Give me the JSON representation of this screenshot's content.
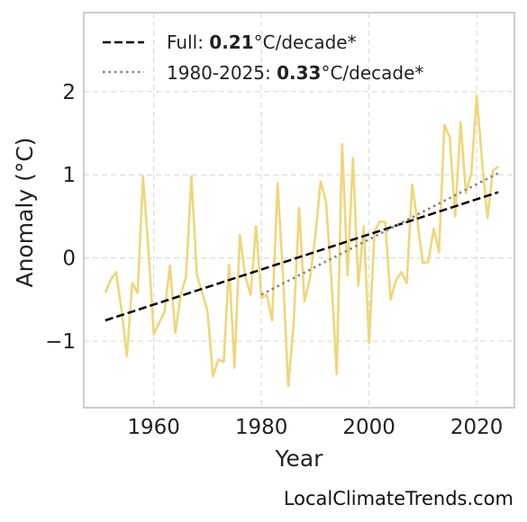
{
  "chart_data": {
    "type": "line",
    "xlabel": "Year",
    "ylabel": "Anomaly (°C)",
    "xlim": [
      1947,
      2027
    ],
    "ylim": [
      -1.8,
      2.95
    ],
    "x_ticks": [
      1960,
      1980,
      2000,
      2020
    ],
    "x_tick_labels": [
      "1960",
      "1980",
      "2000",
      "2020"
    ],
    "y_ticks": [
      -1,
      0,
      1,
      2
    ],
    "y_tick_labels": [
      "−1",
      "0",
      "1",
      "2"
    ],
    "grid": true,
    "legend_position": "top-left",
    "series": [
      {
        "color": "#f0d67a",
        "style": "solid",
        "x": [
          1951,
          1952,
          1953,
          1954,
          1955,
          1956,
          1957,
          1958,
          1959,
          1960,
          1961,
          1962,
          1963,
          1964,
          1965,
          1966,
          1967,
          1968,
          1969,
          1970,
          1971,
          1972,
          1973,
          1974,
          1975,
          1976,
          1977,
          1978,
          1979,
          1980,
          1981,
          1982,
          1983,
          1984,
          1985,
          1986,
          1987,
          1988,
          1989,
          1990,
          1991,
          1992,
          1993,
          1994,
          1995,
          1996,
          1997,
          1998,
          1999,
          2000,
          2001,
          2002,
          2003,
          2004,
          2005,
          2006,
          2007,
          2008,
          2009,
          2010,
          2011,
          2012,
          2013,
          2014,
          2015,
          2016,
          2017,
          2018,
          2019,
          2020,
          2021,
          2022,
          2023,
          2024
        ],
        "y": [
          -0.42,
          -0.26,
          -0.17,
          -0.62,
          -1.18,
          -0.3,
          -0.42,
          0.98,
          0.12,
          -0.92,
          -0.78,
          -0.65,
          -0.09,
          -0.9,
          -0.45,
          -0.22,
          0.98,
          -0.2,
          -0.42,
          -0.65,
          -1.42,
          -1.22,
          -1.25,
          -0.08,
          -1.32,
          0.28,
          -0.22,
          -0.44,
          0.38,
          -0.48,
          -0.44,
          -0.75,
          0.9,
          -0.2,
          -1.54,
          -0.78,
          0.6,
          -0.52,
          -0.25,
          0.25,
          0.92,
          0.68,
          -0.25,
          -1.4,
          1.37,
          -0.21,
          1.2,
          -0.33,
          0.38,
          -1.02,
          0.32,
          0.44,
          0.43,
          -0.5,
          -0.27,
          -0.17,
          -0.3,
          0.88,
          0.44,
          -0.06,
          -0.05,
          0.35,
          0.07,
          1.6,
          1.45,
          0.5,
          1.63,
          0.78,
          1.02,
          1.95,
          1.15,
          0.48,
          1.05,
          1.1
        ]
      },
      {
        "name": "Full: 0.21°C/decade*",
        "color": "#000000",
        "style": "dashed",
        "x": [
          1951,
          2024
        ],
        "y": [
          -0.75,
          0.79
        ]
      },
      {
        "name": "1980-2025: 0.33°C/decade*",
        "color": "#808080",
        "style": "dotted",
        "x": [
          1980,
          2024
        ],
        "y": [
          -0.44,
          1.02
        ]
      }
    ]
  },
  "legend": {
    "full": {
      "prefix": "Full: ",
      "value": "0.21",
      "suffix": "°C/decade*"
    },
    "recent": {
      "prefix": "1980-2025: ",
      "value": "0.33",
      "suffix": "°C/decade*"
    }
  },
  "watermark": "LocalClimateTrends.com"
}
